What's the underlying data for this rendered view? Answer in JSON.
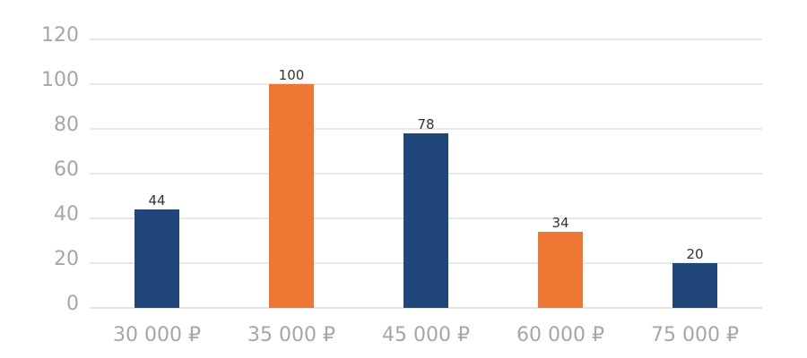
{
  "chart_data": {
    "type": "bar",
    "categories": [
      "30 000 ₽",
      "35 000 ₽",
      "45 000 ₽",
      "60 000 ₽",
      "75 000 ₽"
    ],
    "values": [
      44,
      100,
      78,
      34,
      20
    ],
    "value_labels": [
      "44",
      "100",
      "78",
      "34",
      "20"
    ],
    "bar_colors": [
      "#21467a",
      "#f07733",
      "#21467a",
      "#f07733",
      "#21467a"
    ],
    "y_ticks": [
      "0",
      "20",
      "40",
      "60",
      "80",
      "100",
      "120"
    ],
    "ylim": [
      0,
      120
    ],
    "grid": true,
    "legend": "none"
  },
  "colors": {
    "blue": "#21467a",
    "orange": "#f07733",
    "grid": "#d0d0d0",
    "axis_text": "#a6a6a6"
  }
}
